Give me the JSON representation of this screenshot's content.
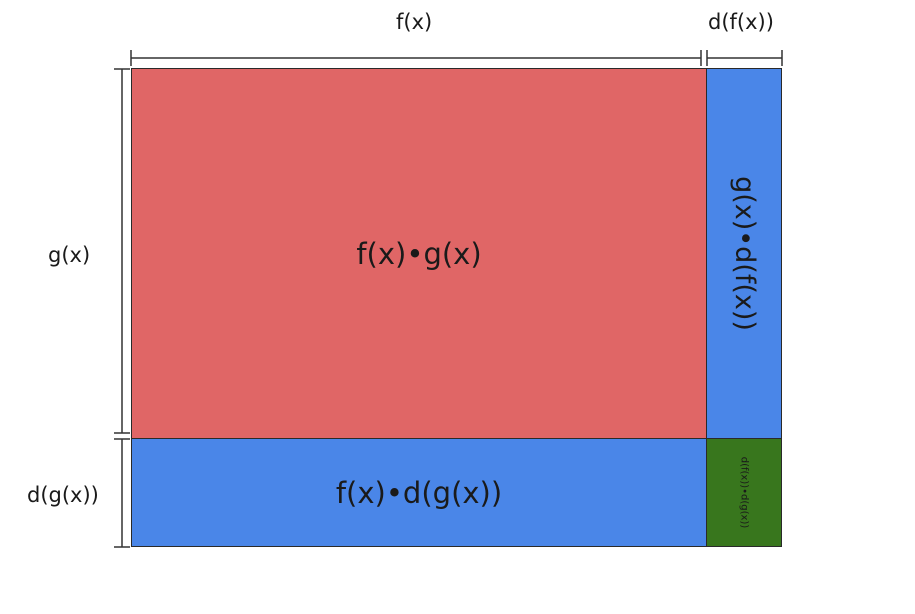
{
  "dimensions": {
    "top_main": "f(x)",
    "top_delta": "d(f(x))",
    "left_main": "g(x)",
    "left_delta": "d(g(x))"
  },
  "regions": {
    "main_area": {
      "label": "f(x)•g(x)",
      "color": "#e06666"
    },
    "right_strip": {
      "label": "g(x)•d(f(x))",
      "color": "#4a86e8"
    },
    "bottom_strip": {
      "label": "f(x)•d(g(x))",
      "color": "#4a86e8"
    },
    "corner": {
      "label": "d(f(x))•d(g(x))",
      "color": "#38761d"
    }
  },
  "colors": {
    "outline": "#2a2a2a"
  }
}
